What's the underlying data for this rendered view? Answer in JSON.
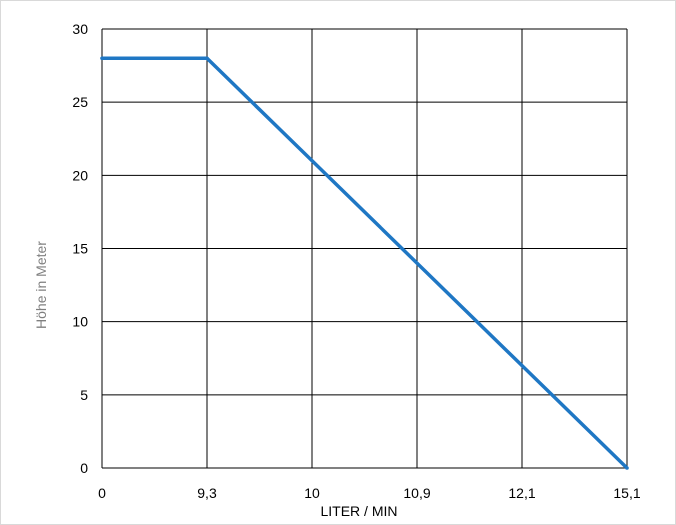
{
  "chart_data": {
    "type": "line",
    "title": "",
    "xlabel": "LITER / MIN",
    "ylabel": "Höhe in Meter",
    "categories": [
      "0",
      "9,3",
      "10",
      "10,9",
      "12,1",
      "15,1"
    ],
    "series": [
      {
        "color": "#1f77c4",
        "points": [
          {
            "x": "0",
            "y": 28
          },
          {
            "x": "9,3",
            "y": 28
          },
          {
            "x": "15,1",
            "y": 0
          }
        ]
      }
    ],
    "yticks": [
      0,
      5,
      10,
      15,
      20,
      25,
      30
    ],
    "ylim": [
      0,
      30
    ],
    "grid": true,
    "legend": "none"
  }
}
